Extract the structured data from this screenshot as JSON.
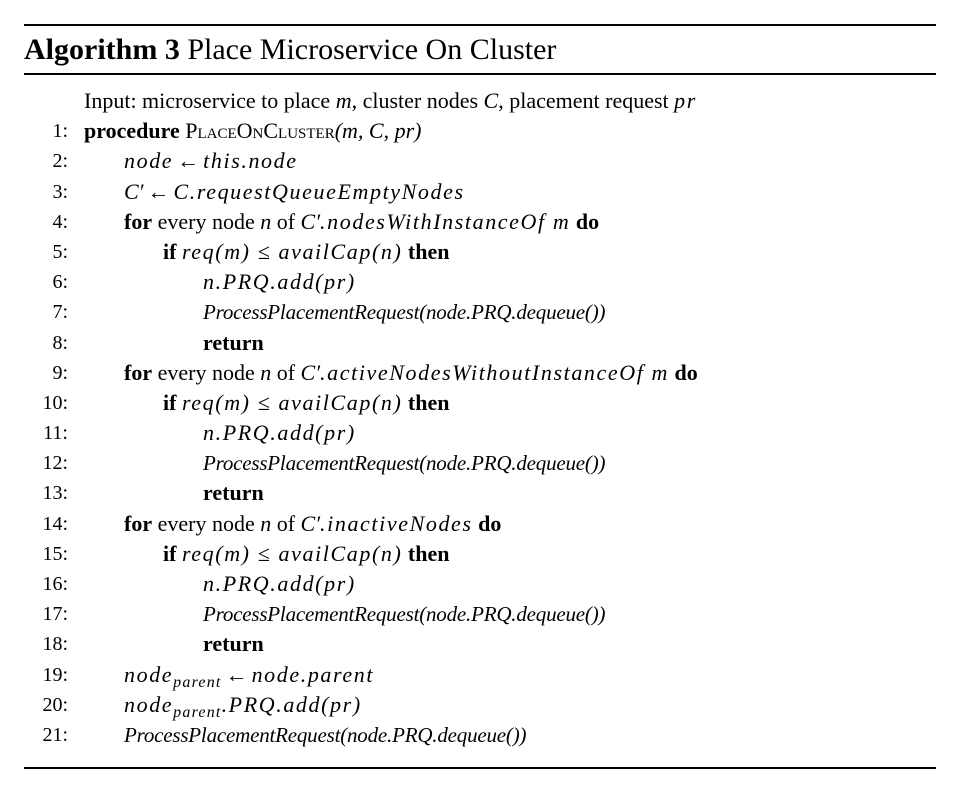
{
  "algorithm": {
    "label": "Algorithm 3",
    "title": "Place Microservice On Cluster",
    "input_text": "Input: microservice to place",
    "input_m": "m",
    "input_mid": ", cluster nodes",
    "input_c": "C",
    "input_mid2": ", placement request",
    "input_pr": "pr"
  },
  "keywords": {
    "procedure": "procedure",
    "for": "for",
    "if": "if",
    "then": "then",
    "do": "do",
    "return": "return",
    "every_node": "every node",
    "of": "of"
  },
  "lines": {
    "n1": "1:",
    "n2": "2:",
    "n3": "3:",
    "n4": "4:",
    "n5": "5:",
    "n6": "6:",
    "n7": "7:",
    "n8": "8:",
    "n9": "9:",
    "n10": "10:",
    "n11": "11:",
    "n12": "12:",
    "n13": "13:",
    "n14": "14:",
    "n15": "15:",
    "n16": "16:",
    "n17": "17:",
    "n18": "18:",
    "n19": "19:",
    "n20": "20:",
    "n21": "21:",
    "proc_name": "PlaceOnCluster",
    "proc_args": "(m, C, pr)",
    "l2_lhs": "node",
    "l2_rhs": "this.node",
    "l3_lhs": "C′",
    "l3_rhs": "C.requestQueueEmptyNodes",
    "iter_var": "n",
    "set_c_prime": "C′",
    "l4_member": ".nodesWithInstanceOf m",
    "cond": "req(m) ≤ availCap(n)",
    "add_stmt": "n.PRQ.add(pr)",
    "process_call": "ProcessPlacementRequest(node.PRQ.dequeue())",
    "l9_member": ".activeNodesWithoutInstanceOf m",
    "l14_member": ".inactiveNodes",
    "node_base": "node",
    "parent_sub": "parent",
    "l19_rhs": "node.parent",
    "l20_tail": ".PRQ.add(pr)",
    "arrow": "←"
  }
}
